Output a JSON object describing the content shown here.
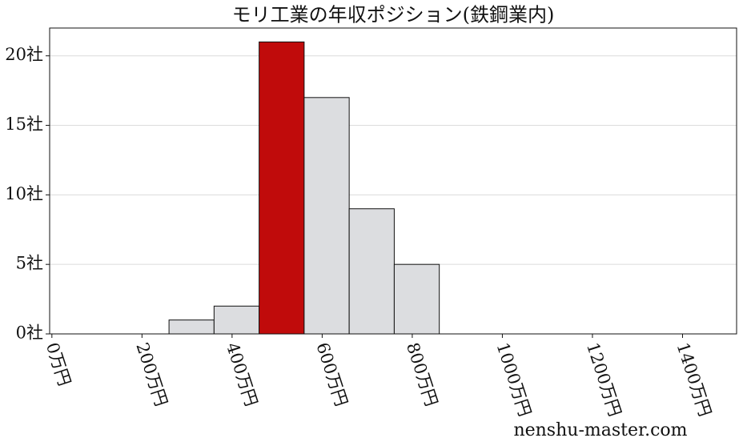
{
  "chart_data": {
    "type": "histogram",
    "title": "モリ工業の年収ポジション(鉄鋼業内)",
    "bins": [
      260,
      360,
      460,
      560,
      660,
      760,
      860
    ],
    "counts": [
      1,
      2,
      21,
      17,
      9,
      5
    ],
    "colors": [
      "#dcdde0",
      "#dcdde0",
      "#c00b0b",
      "#dcdde0",
      "#dcdde0",
      "#dcdde0"
    ],
    "xlim": [
      -5,
      1520
    ],
    "ylim": [
      0,
      22
    ],
    "xticks": [
      {
        "value": 0,
        "label": "0万円"
      },
      {
        "value": 200,
        "label": "200万円"
      },
      {
        "value": 400,
        "label": "400万円"
      },
      {
        "value": 600,
        "label": "600万円"
      },
      {
        "value": 800,
        "label": "800万円"
      },
      {
        "value": 1000,
        "label": "1000万円"
      },
      {
        "value": 1200,
        "label": "1200万円"
      },
      {
        "value": 1400,
        "label": "1400万円"
      }
    ],
    "yticks": [
      {
        "value": 0,
        "label": "0社"
      },
      {
        "value": 5,
        "label": "5社"
      },
      {
        "value": 10,
        "label": "10社"
      },
      {
        "value": 15,
        "label": "15社"
      },
      {
        "value": 20,
        "label": "20社"
      }
    ],
    "grid": true,
    "watermark": "nenshu-master.com"
  }
}
